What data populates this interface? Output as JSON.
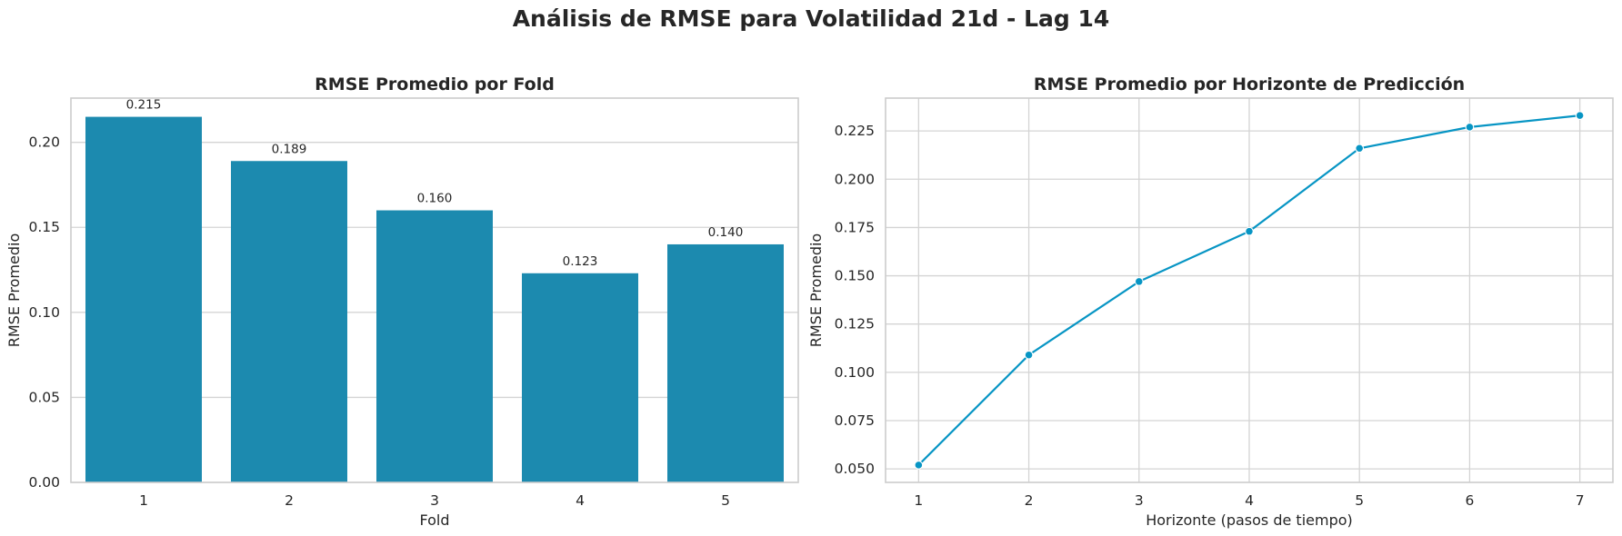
{
  "figure": {
    "title": "Análisis de RMSE para Volatilidad 21d - Lag 14"
  },
  "colors": {
    "bar": "#1c8aaf",
    "line": "#0795c4",
    "grid": "#d4d4d4",
    "spine": "#cccccc",
    "text": "#262626"
  },
  "chart_data": [
    {
      "type": "bar",
      "title": "RMSE Promedio por Fold",
      "xlabel": "Fold",
      "ylabel": "RMSE Promedio",
      "categories": [
        "1",
        "2",
        "3",
        "4",
        "5"
      ],
      "values": [
        0.215,
        0.189,
        0.16,
        0.123,
        0.14
      ],
      "data_labels": [
        "0.215",
        "0.189",
        "0.160",
        "0.123",
        "0.140"
      ],
      "ylim": [
        0,
        0.226
      ],
      "yticks": [
        0.0,
        0.05,
        0.1,
        0.15,
        0.2
      ],
      "ytick_labels": [
        "0.00",
        "0.05",
        "0.10",
        "0.15",
        "0.20"
      ],
      "grid": true
    },
    {
      "type": "line",
      "title": "RMSE Promedio por Horizonte de Predicción",
      "xlabel": "Horizonte (pasos de tiempo)",
      "ylabel": "RMSE Promedio",
      "x": [
        1,
        2,
        3,
        4,
        5,
        6,
        7
      ],
      "values": [
        0.052,
        0.109,
        0.147,
        0.173,
        0.216,
        0.227,
        0.233
      ],
      "xlim": [
        0.7,
        7.3
      ],
      "ylim": [
        0.043,
        0.242
      ],
      "xticks": [
        1,
        2,
        3,
        4,
        5,
        6,
        7
      ],
      "xtick_labels": [
        "1",
        "2",
        "3",
        "4",
        "5",
        "6",
        "7"
      ],
      "yticks": [
        0.05,
        0.075,
        0.1,
        0.125,
        0.15,
        0.175,
        0.2,
        0.225
      ],
      "ytick_labels": [
        "0.050",
        "0.075",
        "0.100",
        "0.125",
        "0.150",
        "0.175",
        "0.200",
        "0.225"
      ],
      "grid": true,
      "markers": true
    }
  ]
}
